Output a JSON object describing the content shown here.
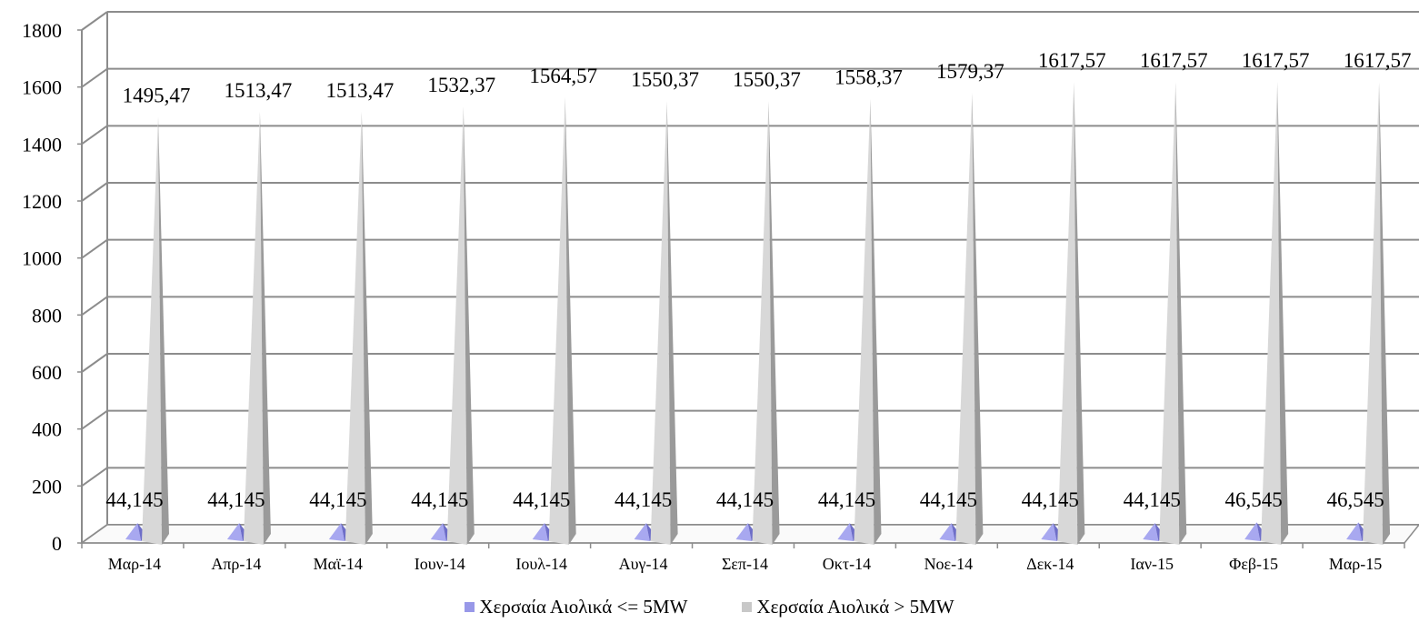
{
  "chart_data": {
    "type": "bar",
    "style": "3d-pyramid",
    "categories": [
      "Μαρ-14",
      "Απρ-14",
      "Μαϊ-14",
      "Ιουν-14",
      "Ιουλ-14",
      "Αυγ-14",
      "Σεπ-14",
      "Οκτ-14",
      "Νοε-14",
      "Δεκ-14",
      "Ιαν-15",
      "Φεβ-15",
      "Μαρ-15"
    ],
    "series": [
      {
        "name": "Χερσαία Αιολικά <= 5MW",
        "color": "#a0a0ec",
        "values": [
          44.145,
          44.145,
          44.145,
          44.145,
          44.145,
          44.145,
          44.145,
          44.145,
          44.145,
          44.145,
          44.145,
          46.545,
          46.545
        ],
        "labels": [
          "44,145",
          "44,145",
          "44,145",
          "44,145",
          "44,145",
          "44,145",
          "44,145",
          "44,145",
          "44,145",
          "44,145",
          "44,145",
          "46,545",
          "46,545"
        ]
      },
      {
        "name": "Χερσαία Αιολικά > 5MW",
        "color": "#c8c8c8",
        "values": [
          1495.47,
          1513.47,
          1513.47,
          1532.37,
          1564.57,
          1550.37,
          1550.37,
          1558.37,
          1579.37,
          1617.57,
          1617.57,
          1617.57,
          1617.57
        ],
        "labels": [
          "1495,47",
          "1513,47",
          "1513,47",
          "1532,37",
          "1564,57",
          "1550,37",
          "1550,37",
          "1558,37",
          "1579,37",
          "1617,57",
          "1617,57",
          "1617,57",
          "1617,57"
        ]
      }
    ],
    "yticks": [
      "0",
      "200",
      "400",
      "600",
      "800",
      "1000",
      "1200",
      "1400",
      "1600",
      "1800"
    ],
    "ylim": [
      0,
      1800
    ],
    "grid": true,
    "legend_position": "bottom"
  }
}
